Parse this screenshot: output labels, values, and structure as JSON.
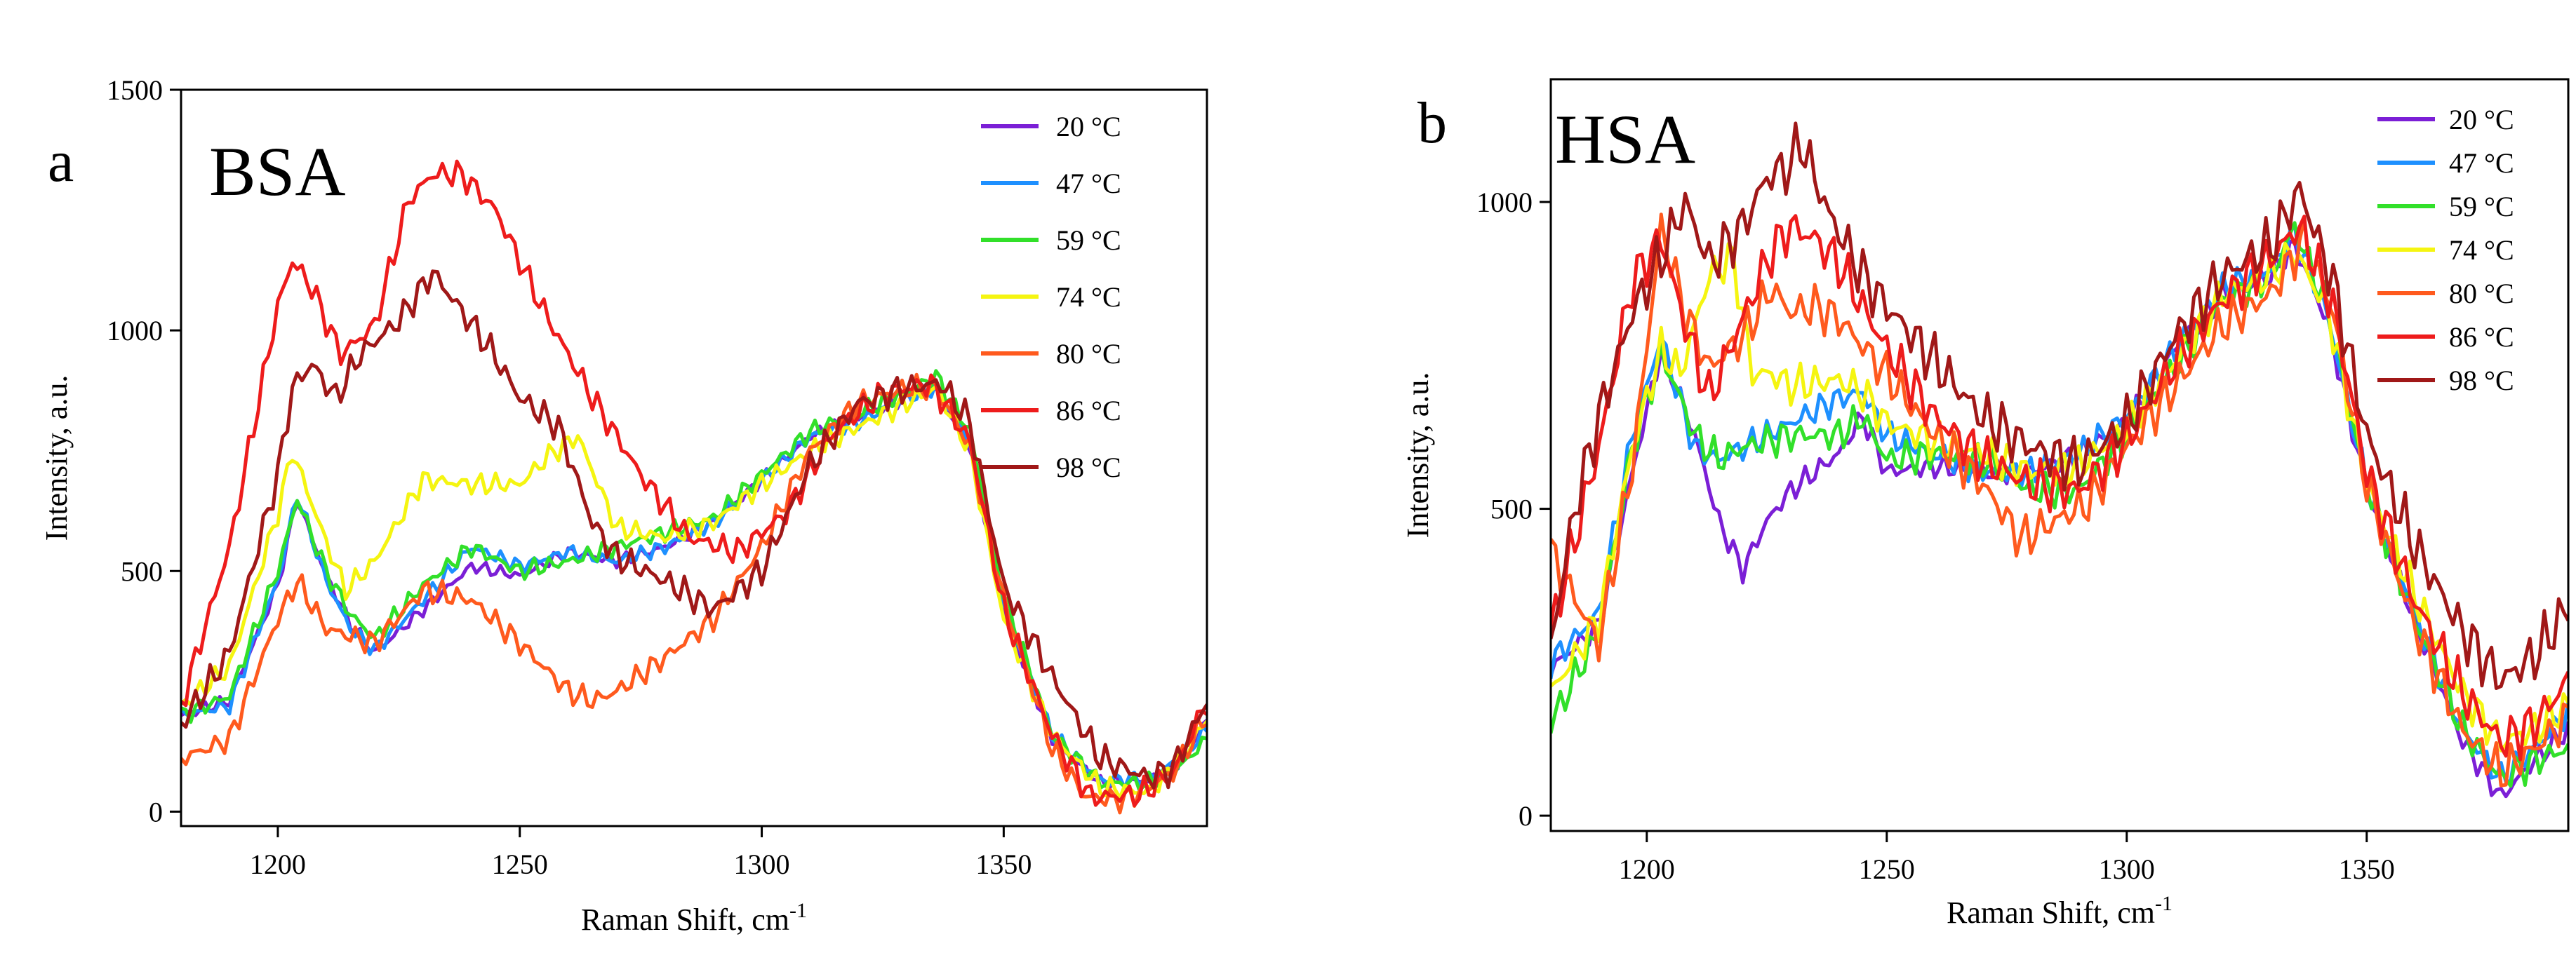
{
  "chart_data": [
    {
      "type": "line",
      "panel_label": "a",
      "sample": "BSA",
      "xlabel": "Raman Shift, cm",
      "xlabel_sup": "-1",
      "ylabel": "Intensity, a.u.",
      "xlim": [
        1180,
        1392
      ],
      "ylim": [
        -30,
        1500
      ],
      "xticks": [
        1200,
        1250,
        1300,
        1350
      ],
      "yticks": [
        0,
        500,
        1000,
        1500
      ],
      "legend_position": "top-right",
      "series": [
        {
          "name": "20 °C",
          "color": "#7b1fd6",
          "x": [
            1180,
            1190,
            1200,
            1204,
            1210,
            1215,
            1220,
            1230,
            1240,
            1250,
            1260,
            1270,
            1280,
            1290,
            1300,
            1310,
            1320,
            1330,
            1336,
            1343,
            1350,
            1360,
            1370,
            1380,
            1385,
            1392
          ],
          "y": [
            200,
            230,
            470,
            650,
            490,
            390,
            330,
            420,
            510,
            490,
            540,
            520,
            550,
            600,
            690,
            780,
            820,
            860,
            880,
            760,
            420,
            150,
            60,
            65,
            90,
            190
          ]
        },
        {
          "name": "47 °C",
          "color": "#1e90ff",
          "x": [
            1180,
            1190,
            1200,
            1204,
            1210,
            1215,
            1220,
            1230,
            1240,
            1250,
            1260,
            1270,
            1280,
            1290,
            1300,
            1310,
            1320,
            1330,
            1336,
            1343,
            1350,
            1360,
            1370,
            1380,
            1385,
            1392
          ],
          "y": [
            200,
            220,
            480,
            660,
            480,
            380,
            335,
            440,
            550,
            510,
            540,
            520,
            550,
            600,
            690,
            780,
            810,
            860,
            880,
            770,
            430,
            160,
            65,
            70,
            100,
            170
          ]
        },
        {
          "name": "59 °C",
          "color": "#32e02a",
          "x": [
            1180,
            1190,
            1200,
            1204,
            1210,
            1215,
            1220,
            1230,
            1240,
            1250,
            1260,
            1270,
            1280,
            1290,
            1300,
            1310,
            1320,
            1330,
            1336,
            1343,
            1350,
            1360,
            1370,
            1380,
            1385,
            1392
          ],
          "y": [
            200,
            240,
            500,
            650,
            500,
            410,
            360,
            470,
            550,
            500,
            520,
            550,
            580,
            610,
            700,
            790,
            830,
            870,
            905,
            790,
            450,
            160,
            60,
            60,
            80,
            150
          ]
        },
        {
          "name": "74 °C",
          "color": "#f5f511",
          "x": [
            1180,
            1190,
            1200,
            1203,
            1210,
            1214,
            1220,
            1230,
            1240,
            1250,
            1256,
            1262,
            1270,
            1280,
            1290,
            1300,
            1310,
            1320,
            1330,
            1336,
            1343,
            1350,
            1360,
            1370,
            1380,
            1385,
            1392
          ],
          "y": [
            220,
            300,
            620,
            750,
            560,
            460,
            520,
            690,
            680,
            680,
            740,
            780,
            590,
            570,
            600,
            680,
            750,
            800,
            850,
            880,
            750,
            400,
            160,
            50,
            40,
            90,
            190
          ]
        },
        {
          "name": "80 °C",
          "color": "#ff5a1e",
          "x": [
            1180,
            1190,
            1200,
            1204,
            1210,
            1220,
            1230,
            1240,
            1250,
            1260,
            1265,
            1270,
            1280,
            1290,
            1300,
            1310,
            1320,
            1330,
            1336,
            1343,
            1350,
            1360,
            1367,
            1375,
            1385,
            1392
          ],
          "y": [
            110,
            150,
            400,
            480,
            380,
            350,
            460,
            440,
            350,
            250,
            230,
            250,
            320,
            400,
            550,
            750,
            850,
            880,
            880,
            760,
            440,
            130,
            30,
            25,
            80,
            200
          ]
        },
        {
          "name": "86 °C",
          "color": "#ee1c1c",
          "x": [
            1180,
            1190,
            1200,
            1203,
            1207,
            1213,
            1220,
            1227,
            1232,
            1238,
            1245,
            1255,
            1265,
            1275,
            1285,
            1295,
            1305,
            1315,
            1325,
            1335,
            1343,
            1350,
            1360,
            1368,
            1378,
            1385,
            1392
          ],
          "y": [
            220,
            550,
            1050,
            1145,
            1090,
            950,
            1010,
            1270,
            1325,
            1325,
            1250,
            1040,
            860,
            700,
            570,
            540,
            620,
            790,
            870,
            890,
            770,
            420,
            160,
            30,
            35,
            80,
            230
          ]
        },
        {
          "name": "98 °C",
          "color": "#a01818",
          "x": [
            1180,
            1190,
            1200,
            1203,
            1207,
            1212,
            1217,
            1225,
            1232,
            1238,
            1244,
            1250,
            1258,
            1265,
            1270,
            1280,
            1290,
            1300,
            1310,
            1320,
            1330,
            1337,
            1343,
            1350,
            1360,
            1370,
            1380,
            1385,
            1392
          ],
          "y": [
            180,
            330,
            700,
            880,
            930,
            860,
            950,
            1020,
            1120,
            1040,
            960,
            860,
            800,
            600,
            530,
            480,
            420,
            500,
            720,
            850,
            880,
            890,
            810,
            470,
            280,
            110,
            70,
            90,
            230
          ]
        }
      ]
    },
    {
      "type": "line",
      "panel_label": "b",
      "sample": "HSA",
      "xlabel": "Raman Shift, cm",
      "xlabel_sup": "-1",
      "ylabel": "Intensity, a.u.",
      "xlim": [
        1180,
        1392
      ],
      "ylim": [
        -25,
        1200
      ],
      "xticks": [
        1200,
        1250,
        1300,
        1350
      ],
      "yticks": [
        0,
        500,
        1000
      ],
      "legend_position": "top-right",
      "series": [
        {
          "name": "20 °C",
          "color": "#7b1fd6",
          "x": [
            1180,
            1190,
            1197,
            1203,
            1206,
            1210,
            1215,
            1220,
            1225,
            1230,
            1240,
            1245,
            1250,
            1260,
            1270,
            1280,
            1290,
            1300,
            1310,
            1320,
            1330,
            1335,
            1342,
            1350,
            1360,
            1370,
            1378,
            1385,
            1392
          ],
          "y": [
            240,
            310,
            560,
            760,
            700,
            620,
            480,
            400,
            480,
            530,
            590,
            650,
            560,
            570,
            560,
            560,
            590,
            640,
            760,
            850,
            880,
            930,
            800,
            530,
            320,
            120,
            30,
            90,
            140
          ]
        },
        {
          "name": "47 °C",
          "color": "#1e90ff",
          "x": [
            1180,
            1190,
            1197,
            1203,
            1206,
            1210,
            1215,
            1220,
            1230,
            1240,
            1245,
            1250,
            1260,
            1270,
            1280,
            1290,
            1300,
            1310,
            1320,
            1330,
            1335,
            1342,
            1350,
            1360,
            1370,
            1378,
            1385,
            1392
          ],
          "y": [
            250,
            330,
            620,
            780,
            700,
            600,
            580,
            600,
            640,
            680,
            690,
            620,
            590,
            560,
            560,
            590,
            650,
            760,
            860,
            890,
            950,
            810,
            540,
            330,
            140,
            60,
            110,
            170
          ]
        },
        {
          "name": "59 °C",
          "color": "#32e02a",
          "x": [
            1180,
            1190,
            1197,
            1203,
            1206,
            1210,
            1215,
            1220,
            1230,
            1240,
            1245,
            1250,
            1260,
            1270,
            1280,
            1290,
            1300,
            1310,
            1320,
            1330,
            1335,
            1342,
            1350,
            1360,
            1370,
            1378,
            1385,
            1392
          ],
          "y": [
            150,
            300,
            600,
            750,
            700,
            620,
            580,
            600,
            620,
            620,
            650,
            580,
            590,
            580,
            530,
            530,
            620,
            730,
            840,
            880,
            960,
            820,
            540,
            320,
            140,
            60,
            90,
            110
          ]
        },
        {
          "name": "74 °C",
          "color": "#f5f511",
          "x": [
            1180,
            1190,
            1197,
            1203,
            1207,
            1213,
            1218,
            1222,
            1226,
            1230,
            1240,
            1245,
            1250,
            1260,
            1270,
            1280,
            1290,
            1300,
            1310,
            1320,
            1330,
            1335,
            1342,
            1350,
            1360,
            1370,
            1378,
            1385,
            1392
          ],
          "y": [
            200,
            320,
            600,
            760,
            720,
            880,
            910,
            720,
            720,
            700,
            710,
            690,
            640,
            610,
            590,
            560,
            570,
            630,
            740,
            850,
            880,
            920,
            820,
            540,
            360,
            200,
            120,
            140,
            180
          ]
        },
        {
          "name": "80 °C",
          "color": "#ff5a1e",
          "x": [
            1180,
            1190,
            1197,
            1203,
            1208,
            1213,
            1220,
            1226,
            1230,
            1235,
            1240,
            1250,
            1260,
            1270,
            1278,
            1285,
            1292,
            1300,
            1310,
            1320,
            1330,
            1337,
            1343,
            1350,
            1360,
            1370,
            1378,
            1385,
            1392
          ],
          "y": [
            430,
            280,
            570,
            960,
            820,
            730,
            780,
            860,
            820,
            830,
            810,
            720,
            620,
            540,
            450,
            480,
            510,
            600,
            700,
            800,
            850,
            940,
            820,
            540,
            310,
            140,
            70,
            110,
            160
          ]
        },
        {
          "name": "86 °C",
          "color": "#ee1c1c",
          "x": [
            1180,
            1190,
            1197,
            1203,
            1208,
            1213,
            1220,
            1226,
            1230,
            1235,
            1240,
            1250,
            1260,
            1270,
            1280,
            1290,
            1300,
            1310,
            1320,
            1330,
            1336,
            1343,
            1350,
            1360,
            1370,
            1378,
            1385,
            1392
          ],
          "y": [
            300,
            600,
            870,
            940,
            800,
            680,
            810,
            920,
            960,
            940,
            900,
            760,
            650,
            580,
            540,
            530,
            610,
            740,
            840,
            910,
            960,
            830,
            560,
            350,
            200,
            120,
            150,
            220
          ]
        },
        {
          "name": "98 °C",
          "color": "#a01818",
          "x": [
            1180,
            1185,
            1190,
            1197,
            1203,
            1208,
            1213,
            1220,
            1225,
            1230,
            1232,
            1238,
            1245,
            1250,
            1260,
            1270,
            1280,
            1290,
            1300,
            1310,
            1320,
            1330,
            1336,
            1343,
            1350,
            1360,
            1370,
            1378,
            1385,
            1392
          ],
          "y": [
            280,
            500,
            650,
            820,
            910,
            1000,
            900,
            960,
            1040,
            1060,
            1100,
            980,
            880,
            830,
            740,
            650,
            600,
            570,
            640,
            780,
            880,
            930,
            1020,
            870,
            620,
            440,
            300,
            220,
            260,
            340
          ]
        }
      ]
    }
  ]
}
